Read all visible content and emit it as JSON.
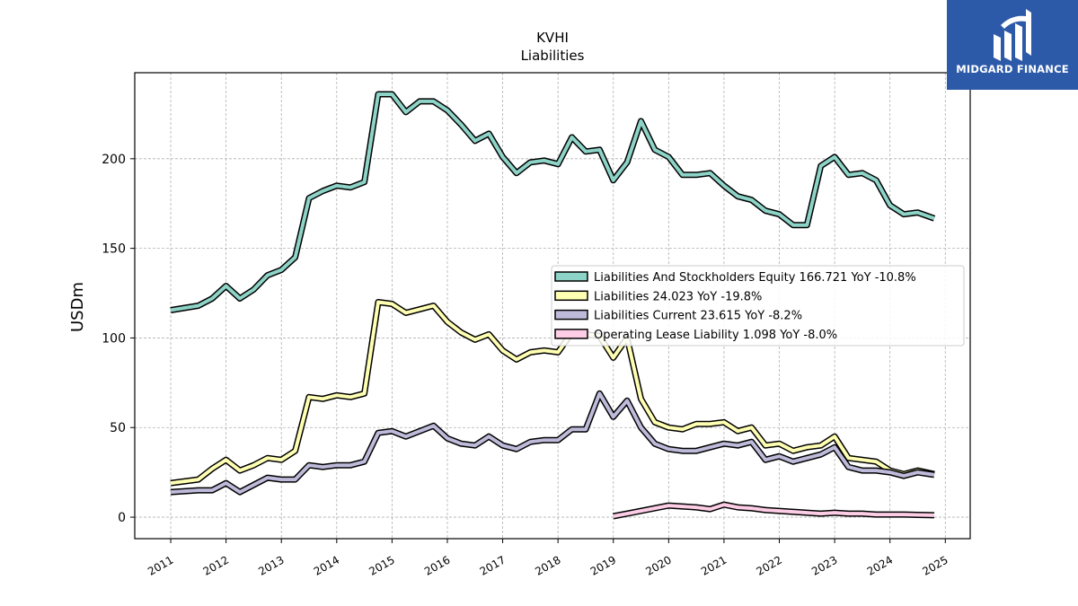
{
  "brand": {
    "name": "MIDGARD FINANCE",
    "logo_icon": "midgard-logo-icon",
    "color": "#2d5aa8"
  },
  "chart_data": {
    "type": "line",
    "title": "KVHI",
    "subtitle": "Liabilities",
    "ylabel": "USDm",
    "xlabel": "",
    "ylim": [
      -12,
      248
    ],
    "xlim": [
      2010.35,
      2025.45
    ],
    "yticks": [
      0,
      50,
      100,
      150,
      200
    ],
    "xticks": [
      "2011",
      "2012",
      "2013",
      "2014",
      "2015",
      "2016",
      "2017",
      "2018",
      "2019",
      "2020",
      "2021",
      "2022",
      "2023",
      "2024",
      "2025"
    ],
    "grid": true,
    "legend_position": "center-right",
    "series": [
      {
        "name": "Liabilities And Stockholders Equity",
        "legend_label": "Liabilities And Stockholders Equity  166.721 YoY -10.8%",
        "color": "#8dd3c7",
        "points": [
          [
            2011.0,
            115.5
          ],
          [
            2011.5,
            118
          ],
          [
            2011.75,
            122
          ],
          [
            2012.0,
            129
          ],
          [
            2012.25,
            122
          ],
          [
            2012.5,
            127
          ],
          [
            2012.75,
            135
          ],
          [
            2013.0,
            138
          ],
          [
            2013.25,
            145
          ],
          [
            2013.5,
            178
          ],
          [
            2013.75,
            182
          ],
          [
            2014.0,
            185
          ],
          [
            2014.25,
            184
          ],
          [
            2014.5,
            187
          ],
          [
            2014.75,
            236
          ],
          [
            2015.0,
            236
          ],
          [
            2015.25,
            226
          ],
          [
            2015.5,
            232
          ],
          [
            2015.75,
            232
          ],
          [
            2016.0,
            227
          ],
          [
            2016.25,
            219
          ],
          [
            2016.5,
            210
          ],
          [
            2016.75,
            214
          ],
          [
            2017.0,
            201
          ],
          [
            2017.25,
            192
          ],
          [
            2017.5,
            198
          ],
          [
            2017.75,
            199
          ],
          [
            2018.0,
            197
          ],
          [
            2018.25,
            212
          ],
          [
            2018.5,
            204
          ],
          [
            2018.75,
            205
          ],
          [
            2019.0,
            188
          ],
          [
            2019.25,
            198
          ],
          [
            2019.5,
            221
          ],
          [
            2019.75,
            205
          ],
          [
            2020.0,
            201
          ],
          [
            2020.25,
            191
          ],
          [
            2020.5,
            191
          ],
          [
            2020.75,
            192
          ],
          [
            2021.0,
            185
          ],
          [
            2021.25,
            179
          ],
          [
            2021.5,
            177
          ],
          [
            2021.75,
            171
          ],
          [
            2022.0,
            169
          ],
          [
            2022.25,
            163
          ],
          [
            2022.5,
            163
          ],
          [
            2022.75,
            196
          ],
          [
            2023.0,
            201
          ],
          [
            2023.25,
            191
          ],
          [
            2023.5,
            192
          ],
          [
            2023.75,
            188
          ],
          [
            2024.0,
            174
          ],
          [
            2024.25,
            169
          ],
          [
            2024.5,
            170
          ],
          [
            2024.8,
            166.7
          ]
        ]
      },
      {
        "name": "Liabilities",
        "legend_label": "Liabilities  24.023 YoY -19.8%",
        "color": "#ffffb3",
        "points": [
          [
            2011.0,
            19
          ],
          [
            2011.5,
            21
          ],
          [
            2011.75,
            27
          ],
          [
            2012.0,
            32
          ],
          [
            2012.25,
            26
          ],
          [
            2012.5,
            29
          ],
          [
            2012.75,
            33
          ],
          [
            2013.0,
            32
          ],
          [
            2013.25,
            37
          ],
          [
            2013.5,
            67
          ],
          [
            2013.75,
            66
          ],
          [
            2014.0,
            68
          ],
          [
            2014.25,
            67
          ],
          [
            2014.5,
            69
          ],
          [
            2014.75,
            120
          ],
          [
            2015.0,
            119
          ],
          [
            2015.25,
            114
          ],
          [
            2015.5,
            116
          ],
          [
            2015.75,
            118
          ],
          [
            2016.0,
            109
          ],
          [
            2016.25,
            103
          ],
          [
            2016.5,
            99
          ],
          [
            2016.75,
            102
          ],
          [
            2017.0,
            93
          ],
          [
            2017.25,
            88
          ],
          [
            2017.5,
            92
          ],
          [
            2017.75,
            93
          ],
          [
            2018.0,
            92
          ],
          [
            2018.25,
            103
          ],
          [
            2018.5,
            102
          ],
          [
            2018.75,
            101
          ],
          [
            2019.0,
            89
          ],
          [
            2019.25,
            100
          ],
          [
            2019.5,
            66
          ],
          [
            2019.75,
            53
          ],
          [
            2020.0,
            50
          ],
          [
            2020.25,
            49
          ],
          [
            2020.5,
            52
          ],
          [
            2020.75,
            52
          ],
          [
            2021.0,
            53
          ],
          [
            2021.25,
            48
          ],
          [
            2021.5,
            50
          ],
          [
            2021.75,
            40
          ],
          [
            2022.0,
            41
          ],
          [
            2022.25,
            37
          ],
          [
            2022.5,
            39
          ],
          [
            2022.75,
            40
          ],
          [
            2023.0,
            45
          ],
          [
            2023.25,
            33
          ],
          [
            2023.5,
            32
          ],
          [
            2023.75,
            31
          ],
          [
            2024.0,
            26
          ],
          [
            2024.25,
            24
          ],
          [
            2024.5,
            26
          ],
          [
            2024.8,
            24.0
          ]
        ]
      },
      {
        "name": "Liabilities Current",
        "legend_label": "Liabilities Current  23.615 YoY -8.2%",
        "color": "#bebada",
        "points": [
          [
            2011.0,
            14
          ],
          [
            2011.5,
            15
          ],
          [
            2011.75,
            15
          ],
          [
            2012.0,
            19
          ],
          [
            2012.25,
            14
          ],
          [
            2012.5,
            18
          ],
          [
            2012.75,
            22
          ],
          [
            2013.0,
            21
          ],
          [
            2013.25,
            21
          ],
          [
            2013.5,
            29
          ],
          [
            2013.75,
            28
          ],
          [
            2014.0,
            29
          ],
          [
            2014.25,
            29
          ],
          [
            2014.5,
            31
          ],
          [
            2014.75,
            47
          ],
          [
            2015.0,
            48
          ],
          [
            2015.25,
            45
          ],
          [
            2015.5,
            48
          ],
          [
            2015.75,
            51
          ],
          [
            2016.0,
            44
          ],
          [
            2016.25,
            41
          ],
          [
            2016.5,
            40
          ],
          [
            2016.75,
            45
          ],
          [
            2017.0,
            40
          ],
          [
            2017.25,
            38
          ],
          [
            2017.5,
            42
          ],
          [
            2017.75,
            43
          ],
          [
            2018.0,
            43
          ],
          [
            2018.25,
            49
          ],
          [
            2018.5,
            49
          ],
          [
            2018.75,
            69
          ],
          [
            2019.0,
            56
          ],
          [
            2019.25,
            65
          ],
          [
            2019.5,
            50
          ],
          [
            2019.75,
            41
          ],
          [
            2020.0,
            38
          ],
          [
            2020.25,
            37
          ],
          [
            2020.5,
            37
          ],
          [
            2020.75,
            39
          ],
          [
            2021.0,
            41
          ],
          [
            2021.25,
            40
          ],
          [
            2021.5,
            42
          ],
          [
            2021.75,
            32
          ],
          [
            2022.0,
            34
          ],
          [
            2022.25,
            31
          ],
          [
            2022.5,
            33
          ],
          [
            2022.75,
            35
          ],
          [
            2023.0,
            39
          ],
          [
            2023.25,
            28
          ],
          [
            2023.5,
            26
          ],
          [
            2023.75,
            26
          ],
          [
            2024.0,
            25
          ],
          [
            2024.25,
            23
          ],
          [
            2024.5,
            25
          ],
          [
            2024.8,
            23.6
          ]
        ]
      },
      {
        "name": "Operating Lease Liability",
        "legend_label": "Operating Lease Liability  1.098 YoY -8.0%",
        "color": "#fccde5",
        "points": [
          [
            2019.0,
            0.5
          ],
          [
            2019.25,
            2
          ],
          [
            2019.5,
            3.5
          ],
          [
            2019.75,
            5
          ],
          [
            2020.0,
            6.5
          ],
          [
            2020.25,
            6
          ],
          [
            2020.5,
            5.5
          ],
          [
            2020.75,
            4.5
          ],
          [
            2021.0,
            7
          ],
          [
            2021.25,
            5.5
          ],
          [
            2021.5,
            5
          ],
          [
            2021.75,
            4
          ],
          [
            2022.0,
            3.5
          ],
          [
            2022.25,
            3
          ],
          [
            2022.5,
            2.5
          ],
          [
            2022.75,
            2
          ],
          [
            2023.0,
            2.5
          ],
          [
            2023.25,
            2
          ],
          [
            2023.5,
            2
          ],
          [
            2023.75,
            1.5
          ],
          [
            2024.0,
            1.5
          ],
          [
            2024.25,
            1.5
          ],
          [
            2024.5,
            1.3
          ],
          [
            2024.8,
            1.1
          ]
        ]
      }
    ]
  }
}
